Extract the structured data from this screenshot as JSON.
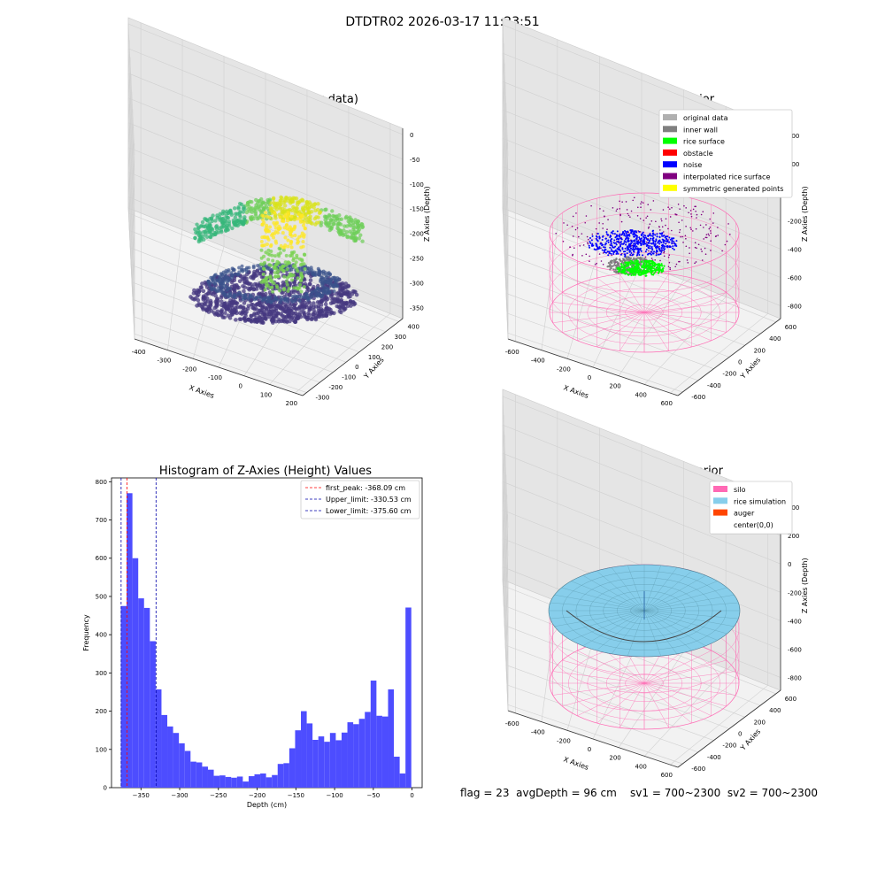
{
  "suptitle": "DTDTR02 2026-03-17 11:23:51",
  "status_text": "flag = 23  avgDepth = 96 cm    sv1 = 700~2300  sv2 = 700~2300",
  "colors": {
    "histogram_bar": "#4d4dff",
    "first_peak_line": "#ff0000",
    "limit_lines": "#0000aa",
    "silo_wire": "#ff69b4",
    "rice_surface": "#87ceeb",
    "noise": "#0000ff",
    "rice_points": "#00ff00",
    "inner_wall": "#808080",
    "interpolated": "#800080"
  },
  "chart_data": [
    {
      "type": "scatter3d",
      "title": "3D Plot of Silo Interior(row data)",
      "xlabel": "X Axies",
      "ylabel": "Y Axies",
      "zlabel": "Z Axies (Depth)",
      "x_ticks": [
        "-400",
        "-300",
        "-200",
        "-100",
        "0",
        "100",
        "200"
      ],
      "y_ticks": [
        "-300",
        "-200",
        "-100",
        "0",
        "100",
        "200",
        "300",
        "400"
      ],
      "z_ticks": [
        "0",
        "-50",
        "-100",
        "-150",
        "-200",
        "-250",
        "-300",
        "-350"
      ],
      "colormap": "viridis"
    },
    {
      "type": "scatter3d",
      "title": "3D classify of Silo Interior",
      "xlabel": "X Axies",
      "ylabel": "Y Axies",
      "zlabel": "Z Axies (Depth)",
      "x_ticks": [
        "-600",
        "-400",
        "-200",
        "0",
        "200",
        "400",
        "600"
      ],
      "y_ticks": [
        "-600",
        "-400",
        "-200",
        "0",
        "200",
        "400",
        "600"
      ],
      "z_ticks": [
        "400",
        "200",
        "0",
        "-200",
        "-400",
        "-600",
        "-800"
      ],
      "legend": [
        {
          "label": "original data",
          "color": "#b0b0b0"
        },
        {
          "label": "inner wall",
          "color": "#808080"
        },
        {
          "label": "rice surface",
          "color": "#00ff00"
        },
        {
          "label": "obstacle",
          "color": "#ff0000"
        },
        {
          "label": "noise",
          "color": "#0000ff"
        },
        {
          "label": "interpolated rice surface",
          "color": "#800080"
        },
        {
          "label": "symmetric generated points",
          "color": "#ffff00"
        }
      ],
      "legend_position": "top-right"
    },
    {
      "type": "bar",
      "title": "Histogram of Z-Axies (Height) Values",
      "xlabel": "Depth (cm)",
      "ylabel": "Frequency",
      "xlim": [
        -388,
        13
      ],
      "ylim": [
        0,
        810
      ],
      "x_ticks": [
        -350,
        -300,
        -250,
        -200,
        -150,
        -100,
        -50,
        0
      ],
      "y_ticks": [
        0,
        100,
        200,
        300,
        400,
        500,
        600,
        700,
        800
      ],
      "bin_start": -376,
      "bin_width": 7.5,
      "values": [
        475,
        770,
        600,
        495,
        470,
        383,
        257,
        190,
        160,
        143,
        116,
        96,
        68,
        66,
        55,
        47,
        31,
        32,
        28,
        26,
        29,
        16,
        30,
        35,
        37,
        27,
        33,
        62,
        64,
        103,
        150,
        200,
        168,
        125,
        134,
        120,
        143,
        124,
        144,
        171,
        166,
        180,
        198,
        280,
        188,
        186,
        257,
        81,
        37,
        471
      ],
      "lines": [
        {
          "label": "first_peak: -368.09 cm",
          "x": -368.09,
          "color": "#ff0000"
        },
        {
          "label": "Upper_limit: -330.53 cm",
          "x": -330.53,
          "color": "#0000aa"
        },
        {
          "label": "Lower_limit: -375.60 cm",
          "x": -375.6,
          "color": "#0000aa"
        }
      ],
      "legend_position": "top-right"
    },
    {
      "type": "surface3d",
      "title": "3D simulation of Silo Interior",
      "xlabel": "X Axies",
      "ylabel": "Y Axies",
      "zlabel": "Z Axies (Depth)",
      "x_ticks": [
        "-600",
        "-400",
        "-200",
        "0",
        "200",
        "400",
        "600"
      ],
      "y_ticks": [
        "-600",
        "-400",
        "-200",
        "0",
        "200",
        "400",
        "600"
      ],
      "z_ticks": [
        "400",
        "200",
        "0",
        "-200",
        "-400",
        "-600",
        "-800"
      ],
      "legend": [
        {
          "label": "silo",
          "color": "#ff69b4"
        },
        {
          "label": "rice simulation",
          "color": "#87ceeb"
        },
        {
          "label": "auger",
          "color": "#ff4500"
        },
        {
          "label": "center(0,0)",
          "color": "#ffffff"
        }
      ],
      "legend_position": "top-right"
    }
  ]
}
